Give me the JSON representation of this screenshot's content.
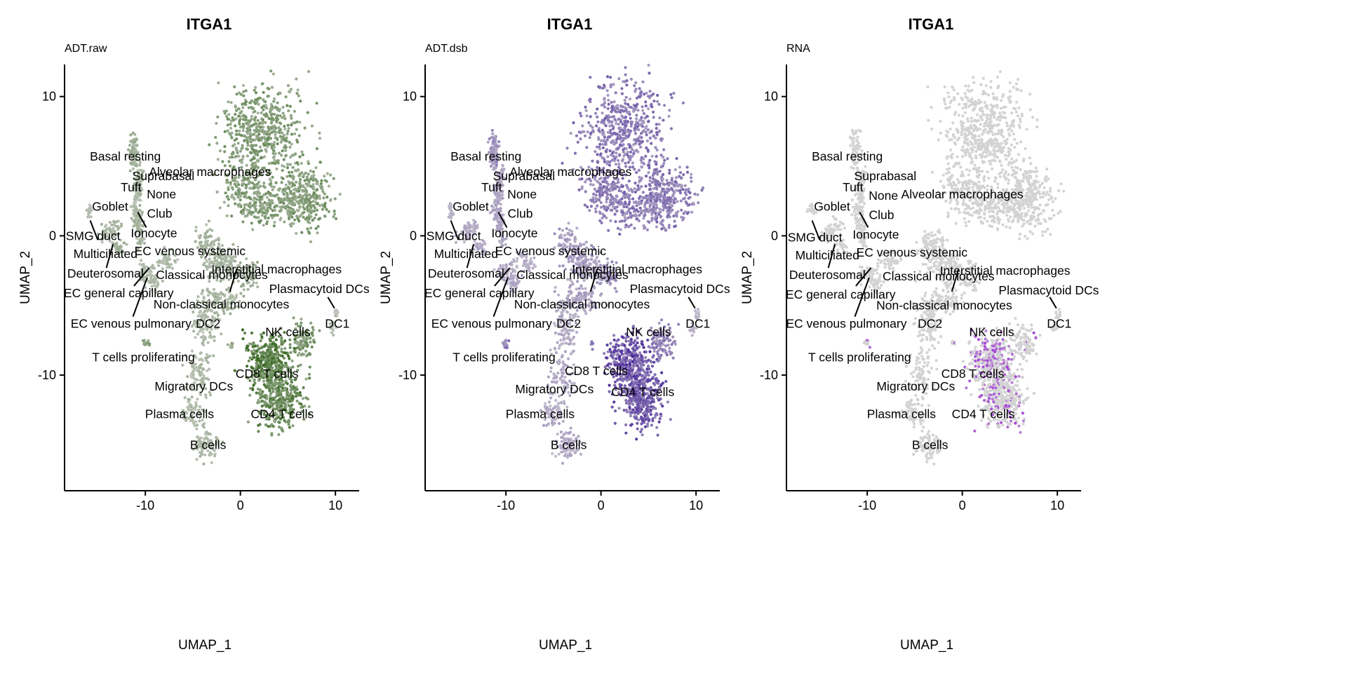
{
  "chart_data": [
    {
      "type": "scatter",
      "title": "ITGA1",
      "subtitle": "ADT.raw",
      "xlabel": "UMAP_1",
      "ylabel": "UMAP_2",
      "xlim": [
        -18.5,
        12.5
      ],
      "ylim": [
        -18.3,
        12.3
      ],
      "xticks": [
        -10,
        0,
        10
      ],
      "yticks": [
        -10,
        0,
        10
      ],
      "colors": {
        "low": "#d3d3d3",
        "high": "#3b6b24"
      },
      "clusters": [
        {
          "name": "Alveolar macrophages",
          "expr": 0.55,
          "label": [
            -3.2,
            4.6
          ]
        },
        {
          "name": "Basal resting",
          "expr": 0.35,
          "label": [
            -12.1,
            5.7
          ]
        },
        {
          "name": "Suprabasal",
          "expr": 0.3,
          "label": [
            -8.1,
            4.3
          ]
        },
        {
          "name": "None",
          "expr": 0.3,
          "label": [
            -8.3,
            3.0
          ]
        },
        {
          "name": "Tuft",
          "expr": 0.25,
          "label": [
            -11.5,
            3.5
          ]
        },
        {
          "name": "Goblet",
          "expr": 0.25,
          "label": [
            -13.7,
            2.1
          ]
        },
        {
          "name": "Club",
          "expr": 0.3,
          "label": [
            -8.5,
            1.6
          ]
        },
        {
          "name": "Ionocyte",
          "expr": 0.3,
          "label": [
            -9.1,
            0.2
          ]
        },
        {
          "name": "SMG duct",
          "expr": 0.2,
          "label": [
            -15.5,
            0.0
          ]
        },
        {
          "name": "Multiciliated",
          "expr": 0.3,
          "label": [
            -14.2,
            -1.3
          ]
        },
        {
          "name": "Deuterosomal",
          "expr": 0.3,
          "label": [
            -14.2,
            -2.7
          ]
        },
        {
          "name": "EC venous systemic",
          "expr": 0.25,
          "label": [
            -5.3,
            -1.1
          ]
        },
        {
          "name": "Classical monocytes",
          "expr": 0.3,
          "label": [
            -3.0,
            -2.8
          ]
        },
        {
          "name": "Interstitial macrophages",
          "expr": 0.35,
          "label": [
            3.8,
            -2.4
          ]
        },
        {
          "name": "Plasmacytoid DCs",
          "expr": 0.2,
          "label": [
            8.3,
            -3.8
          ]
        },
        {
          "name": "EC general capillary",
          "expr": 0.25,
          "label": [
            -12.8,
            -4.1
          ]
        },
        {
          "name": "Non-classical monocytes",
          "expr": 0.3,
          "label": [
            -2.0,
            -4.9
          ]
        },
        {
          "name": "EC venous pulmonary",
          "expr": 0.25,
          "label": [
            -11.5,
            -6.3
          ]
        },
        {
          "name": "DC2",
          "expr": 0.25,
          "label": [
            -3.4,
            -6.3
          ]
        },
        {
          "name": "DC1",
          "expr": 0.2,
          "label": [
            10.2,
            -6.3
          ]
        },
        {
          "name": "NK cells",
          "expr": 0.6,
          "label": [
            5.0,
            -6.9
          ]
        },
        {
          "name": "T cells proliferating",
          "expr": 0.5,
          "label": [
            -10.2,
            -8.7
          ]
        },
        {
          "name": "CD8 T cells",
          "expr": 0.85,
          "label": [
            2.8,
            -9.9
          ]
        },
        {
          "name": "Migratory DCs",
          "expr": 0.25,
          "label": [
            -4.9,
            -10.8
          ]
        },
        {
          "name": "Plasma cells",
          "expr": 0.25,
          "label": [
            -6.4,
            -12.8
          ]
        },
        {
          "name": "CD4 T cells",
          "expr": 0.75,
          "label": [
            4.4,
            -12.8
          ]
        },
        {
          "name": "B cells",
          "expr": 0.25,
          "label": [
            -3.4,
            -15.0
          ]
        }
      ]
    },
    {
      "type": "scatter",
      "title": "ITGA1",
      "subtitle": "ADT.dsb",
      "xlabel": "UMAP_1",
      "ylabel": "UMAP_2",
      "xlim": [
        -18.5,
        12.5
      ],
      "ylim": [
        -18.3,
        12.3
      ],
      "xticks": [
        -10,
        0,
        10
      ],
      "yticks": [
        -10,
        0,
        10
      ],
      "colors": {
        "low": "#d3d3d3",
        "high": "#4b2a9a"
      },
      "clusters": [
        {
          "name": "Alveolar macrophages",
          "expr": 0.55,
          "label": [
            -3.2,
            4.6
          ]
        },
        {
          "name": "Basal resting",
          "expr": 0.4,
          "label": [
            -12.1,
            5.7
          ]
        },
        {
          "name": "Suprabasal",
          "expr": 0.3,
          "label": [
            -8.1,
            4.3
          ]
        },
        {
          "name": "None",
          "expr": 0.3,
          "label": [
            -8.3,
            3.0
          ]
        },
        {
          "name": "Tuft",
          "expr": 0.3,
          "label": [
            -11.5,
            3.5
          ]
        },
        {
          "name": "Goblet",
          "expr": 0.3,
          "label": [
            -13.7,
            2.1
          ]
        },
        {
          "name": "Club",
          "expr": 0.3,
          "label": [
            -8.5,
            1.6
          ]
        },
        {
          "name": "Ionocyte",
          "expr": 0.3,
          "label": [
            -9.1,
            0.2
          ]
        },
        {
          "name": "SMG duct",
          "expr": 0.2,
          "label": [
            -15.5,
            0.0
          ]
        },
        {
          "name": "Multiciliated",
          "expr": 0.25,
          "label": [
            -14.2,
            -1.3
          ]
        },
        {
          "name": "Deuterosomal",
          "expr": 0.25,
          "label": [
            -14.2,
            -2.7
          ]
        },
        {
          "name": "EC venous systemic",
          "expr": 0.25,
          "label": [
            -5.3,
            -1.1
          ]
        },
        {
          "name": "Classical monocytes",
          "expr": 0.35,
          "label": [
            -3.0,
            -2.8
          ]
        },
        {
          "name": "Interstitial macrophages",
          "expr": 0.4,
          "label": [
            3.8,
            -2.4
          ]
        },
        {
          "name": "Plasmacytoid DCs",
          "expr": 0.2,
          "label": [
            8.3,
            -3.8
          ]
        },
        {
          "name": "EC general capillary",
          "expr": 0.25,
          "label": [
            -12.8,
            -4.1
          ]
        },
        {
          "name": "Non-classical monocytes",
          "expr": 0.3,
          "label": [
            -2.0,
            -4.9
          ]
        },
        {
          "name": "EC venous pulmonary",
          "expr": 0.25,
          "label": [
            -11.5,
            -6.3
          ]
        },
        {
          "name": "DC2",
          "expr": 0.25,
          "label": [
            -3.4,
            -6.3
          ]
        },
        {
          "name": "DC1",
          "expr": 0.2,
          "label": [
            10.2,
            -6.3
          ]
        },
        {
          "name": "NK cells",
          "expr": 0.55,
          "label": [
            5.0,
            -6.9
          ]
        },
        {
          "name": "T cells proliferating",
          "expr": 0.5,
          "label": [
            -10.2,
            -8.7
          ]
        },
        {
          "name": "CD8 T cells",
          "expr": 0.8,
          "label": [
            -0.5,
            -9.7
          ]
        },
        {
          "name": "Migratory DCs",
          "expr": 0.25,
          "label": [
            -4.9,
            -11.0
          ]
        },
        {
          "name": "Plasma cells",
          "expr": 0.25,
          "label": [
            -6.4,
            -12.8
          ]
        },
        {
          "name": "CD4 T cells",
          "expr": 0.75,
          "label": [
            4.4,
            -11.2
          ]
        },
        {
          "name": "B cells",
          "expr": 0.25,
          "label": [
            -3.4,
            -15.0
          ]
        }
      ]
    },
    {
      "type": "scatter",
      "title": "ITGA1",
      "subtitle": "RNA",
      "xlabel": "UMAP_1",
      "ylabel": "UMAP_2",
      "xlim": [
        -18.5,
        12.5
      ],
      "ylim": [
        -18.3,
        12.3
      ],
      "xticks": [
        -10,
        0,
        10
      ],
      "yticks": [
        -10,
        0,
        10
      ],
      "colors": {
        "low": "#d3d3d3",
        "high": "#a23ed6"
      },
      "clusters": [
        {
          "name": "Alveolar macrophages",
          "expr": 0.0,
          "label": [
            0.0,
            3.0
          ]
        },
        {
          "name": "Basal resting",
          "expr": 0.0,
          "label": [
            -12.1,
            5.7
          ]
        },
        {
          "name": "Suprabasal",
          "expr": 0.0,
          "label": [
            -8.1,
            4.3
          ]
        },
        {
          "name": "None",
          "expr": 0.0,
          "label": [
            -8.3,
            2.9
          ]
        },
        {
          "name": "Tuft",
          "expr": 0.0,
          "label": [
            -11.5,
            3.5
          ]
        },
        {
          "name": "Goblet",
          "expr": 0.0,
          "label": [
            -13.7,
            2.1
          ]
        },
        {
          "name": "Club",
          "expr": 0.0,
          "label": [
            -8.5,
            1.5
          ]
        },
        {
          "name": "Ionocyte",
          "expr": 0.0,
          "label": [
            -9.1,
            0.1
          ]
        },
        {
          "name": "SMG duct",
          "expr": 0.0,
          "label": [
            -15.5,
            -0.1
          ]
        },
        {
          "name": "Multiciliated",
          "expr": 0.0,
          "label": [
            -14.2,
            -1.4
          ]
        },
        {
          "name": "Deuterosomal",
          "expr": 0.0,
          "label": [
            -14.2,
            -2.8
          ]
        },
        {
          "name": "EC venous systemic",
          "expr": 0.0,
          "label": [
            -5.3,
            -1.2
          ]
        },
        {
          "name": "Classical monocytes",
          "expr": 0.0,
          "label": [
            -2.5,
            -2.9
          ]
        },
        {
          "name": "Interstitial macrophages",
          "expr": 0.0,
          "label": [
            4.5,
            -2.5
          ]
        },
        {
          "name": "Plasmacytoid DCs",
          "expr": 0.0,
          "label": [
            9.1,
            -3.9
          ]
        },
        {
          "name": "EC general capillary",
          "expr": 0.0,
          "label": [
            -12.8,
            -4.2
          ]
        },
        {
          "name": "Non-classical monocytes",
          "expr": 0.0,
          "label": [
            -1.9,
            -5.0
          ]
        },
        {
          "name": "EC venous pulmonary",
          "expr": 0.0,
          "label": [
            -12.2,
            -6.3
          ]
        },
        {
          "name": "DC2",
          "expr": 0.0,
          "label": [
            -3.4,
            -6.3
          ]
        },
        {
          "name": "DC1",
          "expr": 0.0,
          "label": [
            10.2,
            -6.3
          ]
        },
        {
          "name": "NK cells",
          "expr": 0.1,
          "label": [
            3.1,
            -6.9
          ]
        },
        {
          "name": "T cells proliferating",
          "expr": 0.15,
          "label": [
            -10.8,
            -8.7
          ]
        },
        {
          "name": "CD8 T cells",
          "expr": 0.35,
          "label": [
            1.1,
            -9.9
          ]
        },
        {
          "name": "Migratory DCs",
          "expr": 0.0,
          "label": [
            -4.9,
            -10.8
          ]
        },
        {
          "name": "Plasma cells",
          "expr": 0.0,
          "label": [
            -6.4,
            -12.8
          ]
        },
        {
          "name": "CD4 T cells",
          "expr": 0.2,
          "label": [
            2.2,
            -12.8
          ]
        },
        {
          "name": "B cells",
          "expr": 0.0,
          "label": [
            -3.4,
            -15.0
          ]
        }
      ]
    }
  ]
}
